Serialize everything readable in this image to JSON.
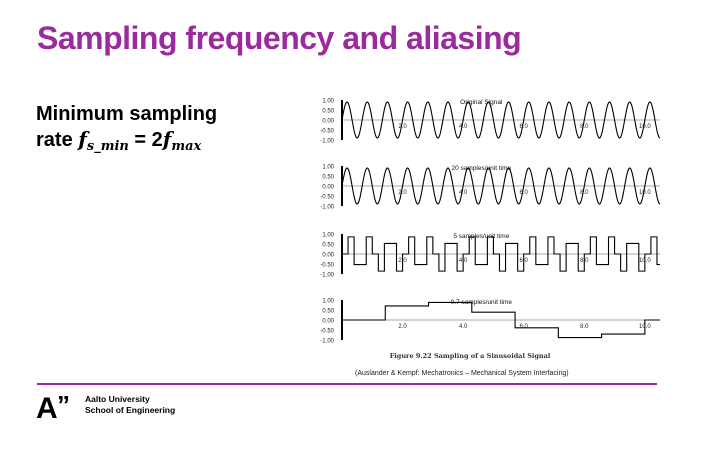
{
  "slide": {
    "title": "Sampling frequency and aliasing",
    "formula": {
      "line1": "Minimum sampling",
      "line2_prefix": "rate",
      "lhs_main": "f",
      "lhs_sub": "s_min",
      "equals": "= 2",
      "rhs_main": "f",
      "rhs_sub": "max"
    },
    "citation": "(Auslander & Kempf: Mechatronics – Mechanical System Interfacing)",
    "footer": {
      "logo_text": "A",
      "logo_quote": "”",
      "university": "Aalto University",
      "school": "School of Engineering"
    }
  },
  "figure": {
    "caption": "Figure 9.22 Sampling of a Sinusoidal Signal",
    "y_ticks": [
      "1.00",
      "0.50",
      "0.00",
      "-0.50",
      "-1.00"
    ],
    "x_ticks": [
      "2.0",
      "4.0",
      "6.0",
      "8.0",
      "10.0"
    ],
    "panels": [
      {
        "label": "Original Signal",
        "samples_per_unit": null
      },
      {
        "label": "20 samples/unit time",
        "samples_per_unit": 20
      },
      {
        "label": "5 samples/unit time",
        "samples_per_unit": 5
      },
      {
        "label": "0.7 samples/unit time",
        "samples_per_unit": 0.7
      }
    ]
  }
}
